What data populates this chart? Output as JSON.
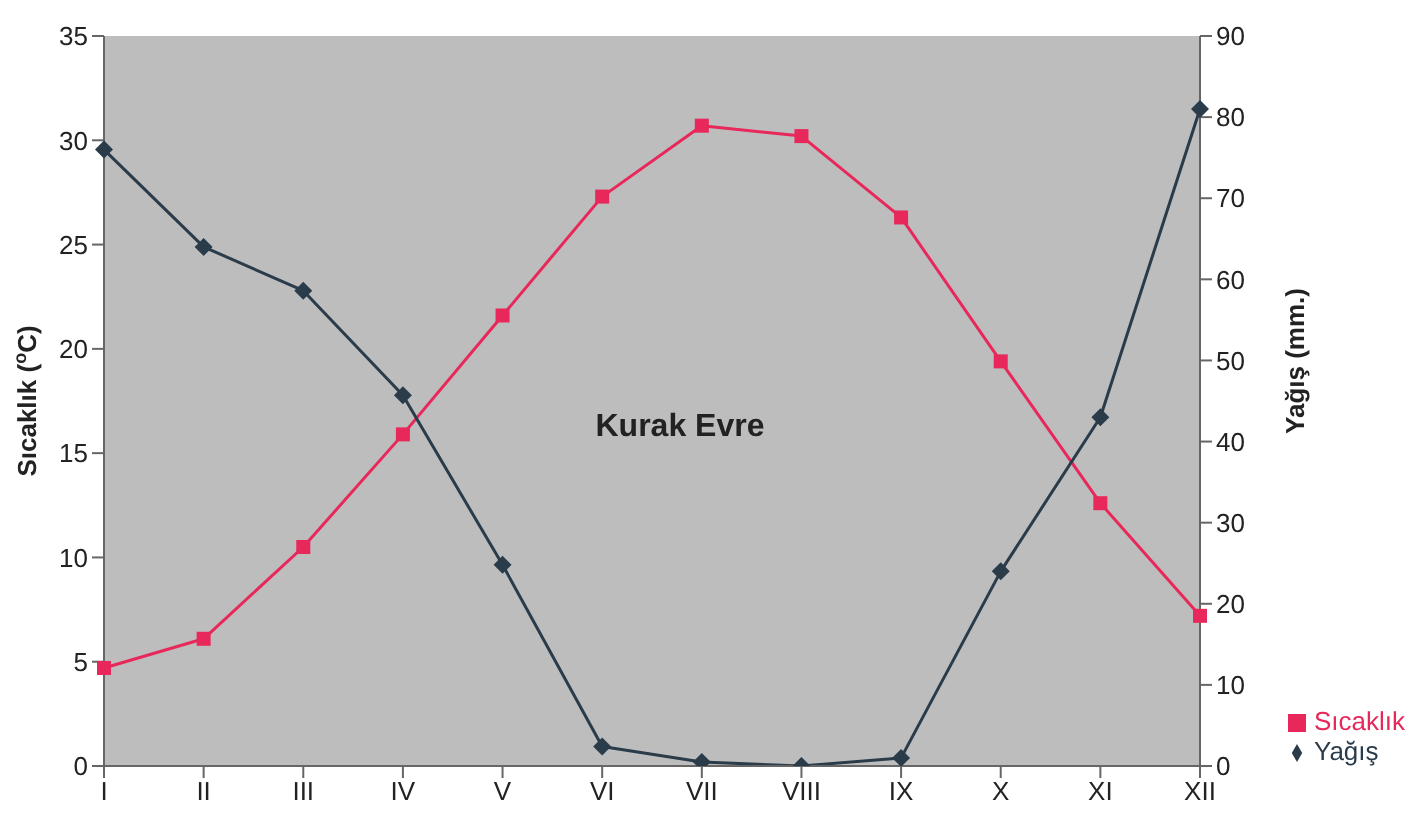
{
  "chart_data": {
    "type": "line",
    "ylabel": "Sıcaklık ($^{o}$C)",
    "y2label": "Yağış (mm.)",
    "annotations": [
      "Kurak Evre"
    ],
    "categories": [
      "I",
      "II",
      "III",
      "IV",
      "V",
      "VI",
      "VII",
      "VIII",
      "IX",
      "X",
      "XI",
      "XII"
    ],
    "series": [
      {
        "name": "Sıcaklık",
        "color": "#e8285a",
        "marker": "square",
        "values": [
          4.7,
          6.1,
          10.5,
          15.9,
          21.6,
          27.3,
          30.7,
          30.2,
          26.3,
          19.4,
          12.6,
          7.2
        ]
      },
      {
        "name": "Yağış",
        "color": "#2a3b4a",
        "marker": "diamond",
        "axis": "y2",
        "values": [
          76,
          64,
          58.6,
          45.7,
          24.8,
          2.4,
          0.5,
          0,
          1,
          24,
          43,
          81
        ]
      }
    ],
    "ylim": [
      0,
      35
    ],
    "yticks": [
      0,
      5,
      10,
      15,
      20,
      25,
      30,
      35
    ],
    "y2lim": [
      0,
      90
    ],
    "y2ticks": [
      0,
      10,
      20,
      30,
      40,
      50,
      60,
      70,
      80,
      90
    ],
    "grid": false,
    "legend": "right"
  }
}
